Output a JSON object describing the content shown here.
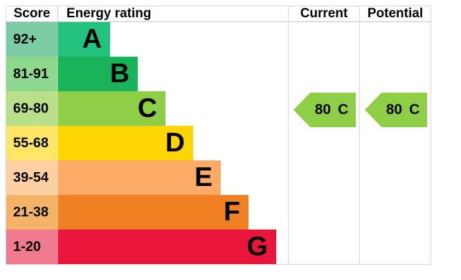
{
  "header": {
    "score": "Score",
    "energy_rating": "Energy rating",
    "current": "Current",
    "potential": "Potential"
  },
  "bands": [
    {
      "letter": "A",
      "score": "92+",
      "bar_color": "#22c17d",
      "score_color": "#7acda6"
    },
    {
      "letter": "B",
      "score": "81-91",
      "bar_color": "#19b459",
      "score_color": "#8ed78f"
    },
    {
      "letter": "C",
      "score": "69-80",
      "bar_color": "#8dce46",
      "score_color": "#b9df8b"
    },
    {
      "letter": "D",
      "score": "55-68",
      "bar_color": "#ffd500",
      "score_color": "#ffe566"
    },
    {
      "letter": "E",
      "score": "39-54",
      "bar_color": "#fcaa65",
      "score_color": "#fdd0a4"
    },
    {
      "letter": "F",
      "score": "21-38",
      "bar_color": "#ef8023",
      "score_color": "#f3b468"
    },
    {
      "letter": "G",
      "score": "1-20",
      "bar_color": "#e9153b",
      "score_color": "#ef7a8e"
    }
  ],
  "current": {
    "value": "80",
    "letter": "C",
    "arrow_color": "#8dce46"
  },
  "potential": {
    "value": "80",
    "letter": "C",
    "arrow_color": "#8dce46"
  },
  "chart_data": {
    "type": "bar",
    "title": "Energy rating",
    "categories": [
      "A",
      "B",
      "C",
      "D",
      "E",
      "F",
      "G"
    ],
    "score_ranges": [
      "92+",
      "81-91",
      "69-80",
      "55-68",
      "39-54",
      "21-38",
      "1-20"
    ],
    "band_colors": [
      "#22c17d",
      "#19b459",
      "#8dce46",
      "#ffd500",
      "#fcaa65",
      "#ef8023",
      "#e9153b"
    ],
    "columns": [
      "Score",
      "Energy rating",
      "Current",
      "Potential"
    ],
    "current_rating": {
      "value": 80,
      "band": "C"
    },
    "potential_rating": {
      "value": 80,
      "band": "C"
    },
    "legend_position": "none",
    "grid": false
  }
}
